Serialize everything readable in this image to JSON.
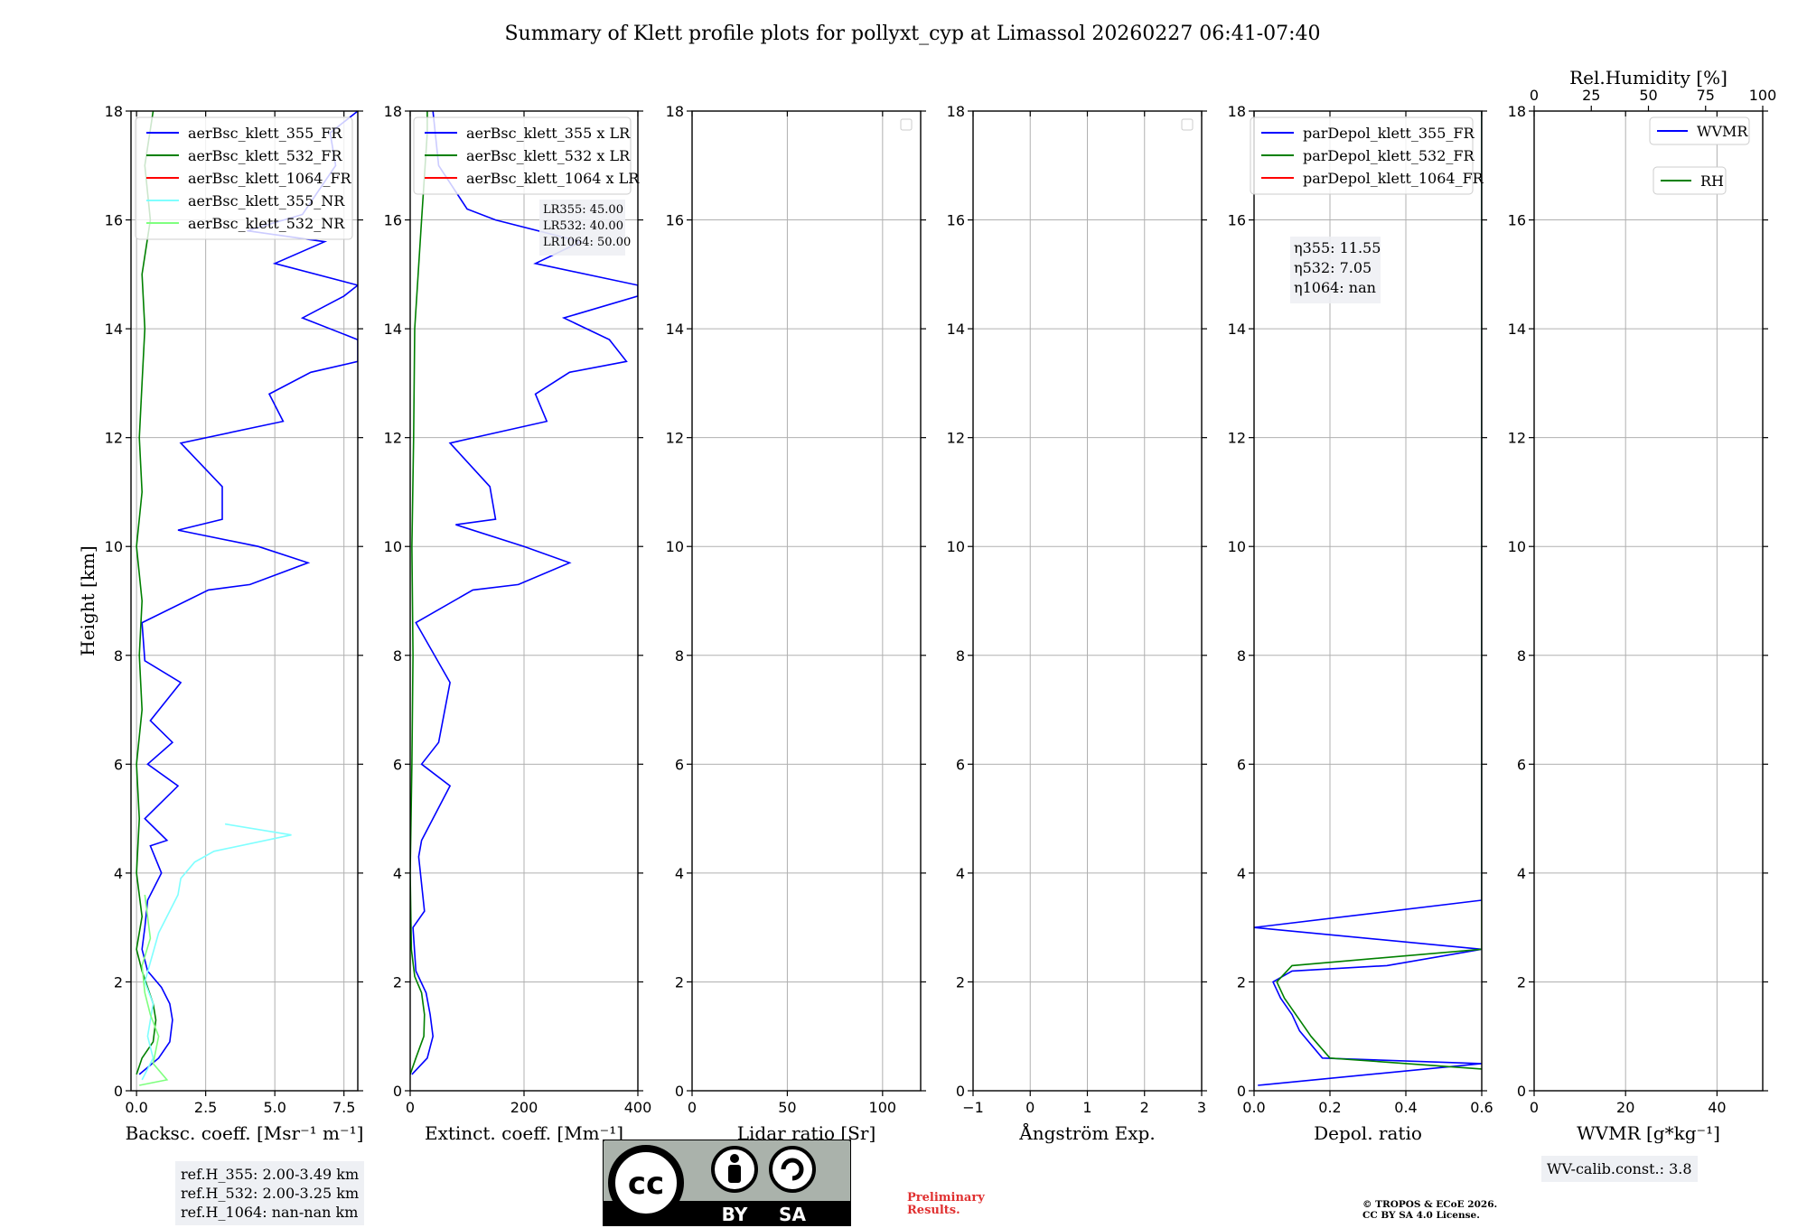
{
  "figure_title": "Summary of Klett profile plots for pollyxt_cyp at Limassol 20260227 06:41-07:40",
  "colors": {
    "blue": "#0000ff",
    "green": "#008000",
    "red": "#ff0000",
    "cyan": "#7fffff",
    "lightgreen": "#7fff7f",
    "grid": "#b0b0b0"
  },
  "chart_data": [
    {
      "type": "line",
      "panel": "backscatter",
      "xlabel": "Backsc. coeff. [Msr⁻¹ m⁻¹]",
      "ylabel": "Height [km]",
      "xlim": [
        -0.2,
        8.0
      ],
      "ylim": [
        0,
        18
      ],
      "xticks": [
        0,
        2.5,
        5.0,
        7.5
      ],
      "xtick_labels": [
        "0.0",
        "2.5",
        "5.0",
        "7.5"
      ],
      "yticks": [
        0,
        2,
        4,
        6,
        8,
        10,
        12,
        14,
        16,
        18
      ],
      "grid": true,
      "legend_position": "top-left",
      "series": [
        {
          "name": "aerBsc_klett_355_FR",
          "color": "#0000ff",
          "values": [
            [
              0.1,
              0.3
            ],
            [
              0.8,
              0.6
            ],
            [
              1.2,
              0.9
            ],
            [
              1.3,
              1.3
            ],
            [
              1.2,
              1.6
            ],
            [
              0.9,
              1.9
            ],
            [
              0.4,
              2.2
            ],
            [
              0.2,
              2.6
            ],
            [
              0.3,
              3.0
            ],
            [
              0.4,
              3.5
            ],
            [
              0.9,
              4.0
            ],
            [
              0.5,
              4.5
            ],
            [
              1.1,
              4.6
            ],
            [
              0.3,
              5.0
            ],
            [
              1.5,
              5.6
            ],
            [
              0.4,
              6.0
            ],
            [
              1.3,
              6.4
            ],
            [
              0.5,
              6.8
            ],
            [
              1.6,
              7.5
            ],
            [
              0.3,
              7.9
            ],
            [
              0.2,
              8.6
            ],
            [
              2.6,
              9.2
            ],
            [
              4.1,
              9.3
            ],
            [
              6.2,
              9.7
            ],
            [
              4.4,
              10.0
            ],
            [
              1.5,
              10.3
            ],
            [
              3.1,
              10.5
            ],
            [
              3.1,
              11.1
            ],
            [
              1.6,
              11.9
            ],
            [
              5.3,
              12.3
            ],
            [
              4.8,
              12.8
            ],
            [
              6.3,
              13.2
            ],
            [
              8.0,
              13.4
            ],
            [
              8.0,
              13.8
            ],
            [
              6.0,
              14.2
            ],
            [
              7.5,
              14.6
            ],
            [
              8.0,
              14.8
            ],
            [
              5.0,
              15.2
            ],
            [
              6.8,
              15.6
            ],
            [
              4.0,
              15.8
            ],
            [
              6.0,
              16.1
            ],
            [
              7.2,
              17.0
            ],
            [
              7.0,
              17.6
            ],
            [
              8.0,
              18.0
            ]
          ]
        },
        {
          "name": "aerBsc_klett_532_FR",
          "color": "#008000",
          "values": [
            [
              0.0,
              0.3
            ],
            [
              0.2,
              0.6
            ],
            [
              0.6,
              0.9
            ],
            [
              0.7,
              1.3
            ],
            [
              0.6,
              1.6
            ],
            [
              0.4,
              1.9
            ],
            [
              0.2,
              2.2
            ],
            [
              0.0,
              2.6
            ],
            [
              0.2,
              3.2
            ],
            [
              0.0,
              4.0
            ],
            [
              0.1,
              5.0
            ],
            [
              0.0,
              6.0
            ],
            [
              0.2,
              7.0
            ],
            [
              0.1,
              8.0
            ],
            [
              0.2,
              9.0
            ],
            [
              0.0,
              10.0
            ],
            [
              0.2,
              11.0
            ],
            [
              0.1,
              12.0
            ],
            [
              0.2,
              13.0
            ],
            [
              0.3,
              14.0
            ],
            [
              0.2,
              15.0
            ],
            [
              0.5,
              16.0
            ],
            [
              0.3,
              17.0
            ],
            [
              0.6,
              18.0
            ]
          ]
        },
        {
          "name": "aerBsc_klett_1064_FR",
          "color": "#ff0000",
          "values": []
        },
        {
          "name": "aerBsc_klett_355_NR",
          "color": "#7fffff",
          "values": [
            [
              0.2,
              0.2
            ],
            [
              0.6,
              0.6
            ],
            [
              0.4,
              1.0
            ],
            [
              0.6,
              1.6
            ],
            [
              0.3,
              2.0
            ],
            [
              0.8,
              2.9
            ],
            [
              1.5,
              3.6
            ],
            [
              1.6,
              3.9
            ],
            [
              2.1,
              4.2
            ],
            [
              2.8,
              4.4
            ],
            [
              5.6,
              4.7
            ],
            [
              3.2,
              4.9
            ]
          ]
        },
        {
          "name": "aerBsc_klett_532_NR",
          "color": "#7fff7f",
          "values": [
            [
              0.1,
              0.1
            ],
            [
              1.1,
              0.2
            ],
            [
              0.6,
              0.5
            ],
            [
              0.8,
              1.0
            ],
            [
              0.5,
              1.4
            ],
            [
              0.3,
              1.8
            ],
            [
              0.2,
              2.3
            ],
            [
              0.5,
              2.8
            ],
            [
              0.3,
              3.6
            ]
          ]
        }
      ],
      "info": [
        "ref.H_355: 2.00-3.49 km",
        "ref.H_532: 2.00-3.25 km",
        "ref.H_1064: nan-nan km"
      ]
    },
    {
      "type": "line",
      "panel": "extinction",
      "xlabel": "Extinct. coeff. [Mm⁻¹]",
      "xlim": [
        0,
        400
      ],
      "ylim": [
        0,
        18
      ],
      "xticks": [
        0,
        200,
        400
      ],
      "xtick_labels": [
        "0",
        "200",
        "400"
      ],
      "yticks": [
        0,
        2,
        4,
        6,
        8,
        10,
        12,
        14,
        16,
        18
      ],
      "grid": true,
      "legend_position": "top-left",
      "series": [
        {
          "name": "aerBsc_klett_355 x LR",
          "color": "#0000ff",
          "values": [
            [
              3,
              0.3
            ],
            [
              30,
              0.6
            ],
            [
              40,
              1.0
            ],
            [
              35,
              1.4
            ],
            [
              28,
              1.8
            ],
            [
              10,
              2.2
            ],
            [
              5,
              3.0
            ],
            [
              25,
              3.3
            ],
            [
              15,
              4.3
            ],
            [
              20,
              4.6
            ],
            [
              70,
              5.6
            ],
            [
              20,
              6.0
            ],
            [
              50,
              6.4
            ],
            [
              70,
              7.5
            ],
            [
              10,
              8.6
            ],
            [
              110,
              9.2
            ],
            [
              190,
              9.3
            ],
            [
              280,
              9.7
            ],
            [
              200,
              10.0
            ],
            [
              80,
              10.4
            ],
            [
              150,
              10.5
            ],
            [
              140,
              11.1
            ],
            [
              70,
              11.9
            ],
            [
              240,
              12.3
            ],
            [
              220,
              12.8
            ],
            [
              280,
              13.2
            ],
            [
              380,
              13.4
            ],
            [
              350,
              13.8
            ],
            [
              270,
              14.2
            ],
            [
              400,
              14.6
            ],
            [
              400,
              14.8
            ],
            [
              220,
              15.2
            ],
            [
              300,
              15.6
            ],
            [
              150,
              16.0
            ],
            [
              100,
              16.2
            ],
            [
              50,
              17.0
            ],
            [
              40,
              18.0
            ]
          ]
        },
        {
          "name": "aerBsc_klett_532 x LR",
          "color": "#008000",
          "values": [
            [
              0,
              0.3
            ],
            [
              10,
              0.6
            ],
            [
              24,
              1.0
            ],
            [
              25,
              1.4
            ],
            [
              20,
              1.8
            ],
            [
              8,
              2.1
            ],
            [
              2,
              2.6
            ],
            [
              0,
              4.0
            ],
            [
              3,
              6.0
            ],
            [
              5,
              8.0
            ],
            [
              3,
              10.0
            ],
            [
              6,
              12.0
            ],
            [
              8,
              14.0
            ],
            [
              20,
              16.0
            ],
            [
              30,
              17.6
            ],
            [
              30,
              18.0
            ]
          ]
        },
        {
          "name": "aerBsc_klett_1064 x LR",
          "color": "#ff0000",
          "values": []
        }
      ],
      "info": [
        "LR355: 45.00",
        "LR532: 40.00",
        "LR1064: 50.00"
      ]
    },
    {
      "type": "line",
      "panel": "lidar_ratio",
      "xlabel": "Lidar ratio [Sr]",
      "xlim": [
        0,
        120
      ],
      "ylim": [
        0,
        18
      ],
      "xticks": [
        0,
        50,
        100
      ],
      "xtick_labels": [
        "0",
        "50",
        "100"
      ],
      "yticks": [
        0,
        2,
        4,
        6,
        8,
        10,
        12,
        14,
        16,
        18
      ],
      "grid": true,
      "series": []
    },
    {
      "type": "line",
      "panel": "angstrom",
      "xlabel": "Ångström Exp.",
      "xlim": [
        -1,
        3
      ],
      "ylim": [
        0,
        18
      ],
      "xticks": [
        -1,
        0,
        1,
        2,
        3
      ],
      "xtick_labels": [
        "−1",
        "0",
        "1",
        "2",
        "3"
      ],
      "yticks": [
        0,
        2,
        4,
        6,
        8,
        10,
        12,
        14,
        16,
        18
      ],
      "grid": true,
      "series": []
    },
    {
      "type": "line",
      "panel": "depolarization",
      "xlabel": "Depol. ratio",
      "xlim": [
        0,
        0.6
      ],
      "ylim": [
        0,
        18
      ],
      "xticks": [
        0,
        0.2,
        0.4,
        0.6
      ],
      "xtick_labels": [
        "0.0",
        "0.2",
        "0.4",
        "0.6"
      ],
      "yticks": [
        0,
        2,
        4,
        6,
        8,
        10,
        12,
        14,
        16,
        18
      ],
      "grid": true,
      "legend_position": "top-left",
      "series": [
        {
          "name": "parDepol_klett_355_FR",
          "color": "#0000ff",
          "values": [
            [
              0.01,
              0.1
            ],
            [
              0.6,
              0.5
            ],
            [
              0.18,
              0.6
            ],
            [
              0.12,
              1.1
            ],
            [
              0.1,
              1.4
            ],
            [
              0.07,
              1.7
            ],
            [
              0.05,
              2.0
            ],
            [
              0.1,
              2.2
            ],
            [
              0.35,
              2.3
            ],
            [
              0.6,
              2.6
            ],
            [
              0.0,
              3.0
            ],
            [
              0.6,
              3.5
            ],
            [
              0.6,
              4.5
            ],
            [
              0.6,
              5.5
            ],
            [
              0.6,
              6.5
            ],
            [
              0.6,
              7.5
            ],
            [
              0.6,
              8.5
            ],
            [
              0.6,
              9.5
            ],
            [
              0.6,
              10.5
            ],
            [
              0.6,
              11.5
            ],
            [
              0.6,
              12.5
            ],
            [
              0.6,
              13.5
            ],
            [
              0.6,
              14.5
            ],
            [
              0.6,
              15.5
            ],
            [
              0.6,
              16.5
            ],
            [
              0.6,
              17.5
            ],
            [
              0.6,
              18.0
            ]
          ]
        },
        {
          "name": "parDepol_klett_532_FR",
          "color": "#008000",
          "values": [
            [
              0.6,
              0.4
            ],
            [
              0.2,
              0.6
            ],
            [
              0.15,
              1.0
            ],
            [
              0.12,
              1.3
            ],
            [
              0.08,
              1.7
            ],
            [
              0.06,
              2.0
            ],
            [
              0.1,
              2.3
            ],
            [
              0.6,
              2.6
            ],
            [
              0.6,
              3.5
            ],
            [
              0.6,
              4.5
            ],
            [
              0.6,
              5.5
            ],
            [
              0.6,
              6.5
            ],
            [
              0.6,
              7.5
            ],
            [
              0.6,
              8.5
            ],
            [
              0.6,
              9.5
            ],
            [
              0.6,
              10.5
            ],
            [
              0.6,
              11.5
            ],
            [
              0.6,
              12.5
            ],
            [
              0.6,
              13.5
            ],
            [
              0.6,
              14.5
            ],
            [
              0.6,
              15.5
            ],
            [
              0.6,
              16.5
            ],
            [
              0.6,
              17.5
            ],
            [
              0.6,
              18.0
            ]
          ]
        },
        {
          "name": "parDepol_klett_1064_FR",
          "color": "#ff0000",
          "values": []
        }
      ],
      "info": [
        "η355: 11.55",
        "η532: 7.05",
        "η1064: nan"
      ]
    },
    {
      "type": "line",
      "panel": "wvmr_rh",
      "xlabel": "WVMR [g*kg⁻¹]",
      "xlim": [
        0,
        50
      ],
      "ylim": [
        0,
        18
      ],
      "xticks": [
        0,
        20,
        40
      ],
      "xtick_labels": [
        "0",
        "20",
        "40"
      ],
      "top_xlabel": "Rel.Humidity [%]",
      "top_xlim": [
        0,
        100
      ],
      "top_xticks": [
        0,
        25,
        50,
        75,
        100
      ],
      "top_xtick_labels": [
        "0",
        "25",
        "50",
        "75",
        "100"
      ],
      "yticks": [
        0,
        2,
        4,
        6,
        8,
        10,
        12,
        14,
        16,
        18
      ],
      "grid": true,
      "legend_position": "top-right",
      "series": [
        {
          "name": "WVMR",
          "color": "#0000ff",
          "values": []
        },
        {
          "name": "RH",
          "color": "#008000",
          "values": []
        }
      ],
      "info": [
        "WV-calib.const.: 3.8"
      ]
    }
  ],
  "license": {
    "badge_top": "cc",
    "by": "BY",
    "sa": "SA"
  },
  "preliminary": "Preliminary Results.",
  "copyright_line1": "© TROPOS & ECoE 2026.",
  "copyright_line2": "CC BY SA 4.0 License."
}
